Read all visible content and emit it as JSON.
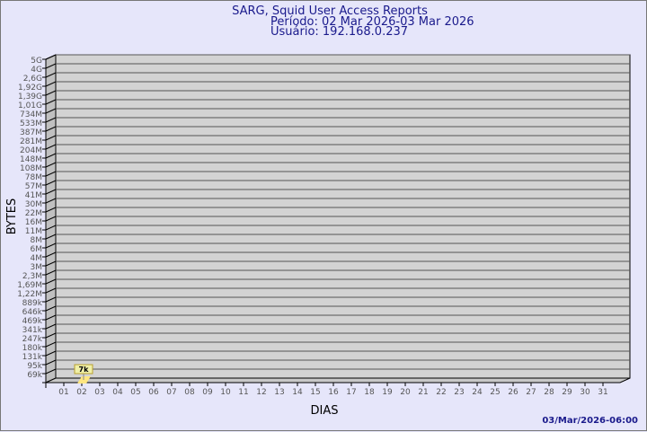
{
  "chart_data": {
    "type": "bar",
    "title": "SARG, Squid User Access Reports",
    "subtitle_period": "Período: 02 Mar 2026-03 Mar 2026",
    "subtitle_user": "Usuário: 192.168.0.237",
    "xlabel": "DIAS",
    "ylabel": "BYTES",
    "footer_timestamp": "03/Mar/2026-06:00",
    "y_scale": "log",
    "y_tick_labels": [
      "5G",
      "4G",
      "2,6G",
      "1,92G",
      "1,39G",
      "1,01G",
      "734M",
      "533M",
      "387M",
      "281M",
      "204M",
      "148M",
      "108M",
      "78M",
      "57M",
      "41M",
      "30M",
      "22M",
      "16M",
      "11M",
      "8M",
      "6M",
      "4M",
      "3M",
      "2,3M",
      "1,69M",
      "1,22M",
      "889k",
      "646k",
      "469k",
      "341k",
      "247k",
      "180k",
      "131k",
      "95k",
      "69k"
    ],
    "categories": [
      "01",
      "02",
      "03",
      "04",
      "05",
      "06",
      "07",
      "08",
      "09",
      "10",
      "11",
      "12",
      "13",
      "14",
      "15",
      "16",
      "17",
      "18",
      "19",
      "20",
      "21",
      "22",
      "23",
      "24",
      "25",
      "26",
      "27",
      "28",
      "29",
      "30",
      "31"
    ],
    "bars": [
      {
        "day": "02",
        "label": "7k"
      }
    ],
    "grid": true,
    "colors": {
      "title": "#1a1a8c",
      "wall": "#d3d3d3",
      "bar": "#ffe680",
      "label_bg": "#f0f0a8"
    }
  }
}
